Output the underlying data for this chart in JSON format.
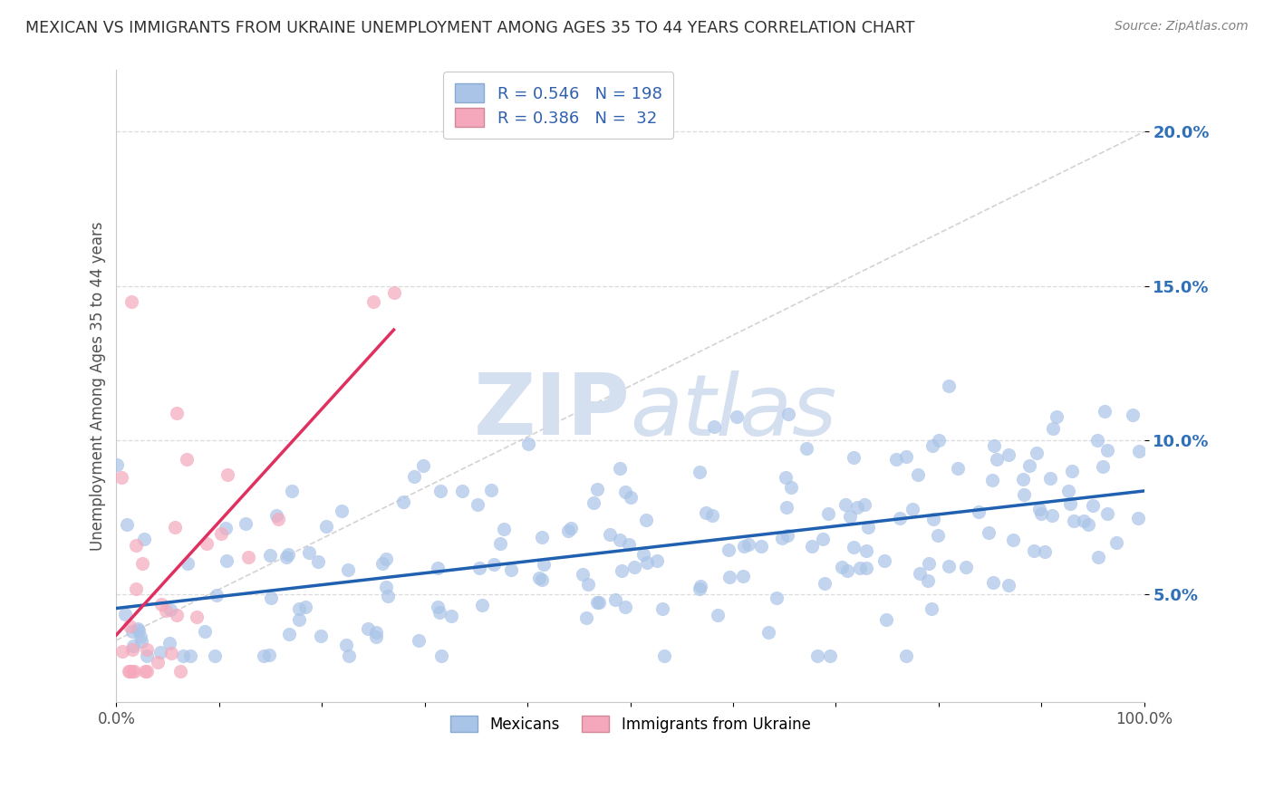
{
  "title": "MEXICAN VS IMMIGRANTS FROM UKRAINE UNEMPLOYMENT AMONG AGES 35 TO 44 YEARS CORRELATION CHART",
  "source": "Source: ZipAtlas.com",
  "ylabel": "Unemployment Among Ages 35 to 44 years",
  "xlim": [
    0,
    100
  ],
  "ylim": [
    1.5,
    22
  ],
  "x_ticks": [
    0,
    10,
    20,
    30,
    40,
    50,
    60,
    70,
    80,
    90,
    100
  ],
  "x_tick_labels": [
    "0.0%",
    "",
    "",
    "",
    "",
    "",
    "",
    "",
    "",
    "",
    "100.0%"
  ],
  "y_ticks": [
    5,
    10,
    15,
    20
  ],
  "y_tick_labels": [
    "5.0%",
    "10.0%",
    "15.0%",
    "20.0%"
  ],
  "legend_labels": [
    "Mexicans",
    "Immigrants from Ukraine"
  ],
  "R_mexican": 0.546,
  "N_mexican": 198,
  "R_ukraine": 0.386,
  "N_ukraine": 32,
  "mexican_color": "#aac4e8",
  "ukraine_color": "#f5a8bc",
  "trend_mexican_color": "#2060b0",
  "trend_ukraine_color": "#e03060",
  "background_color": "#ffffff",
  "plot_bg_color": "#ffffff",
  "grid_color": "#d8d8d8",
  "title_color": "#303030",
  "watermark_color": "#d4dff0"
}
